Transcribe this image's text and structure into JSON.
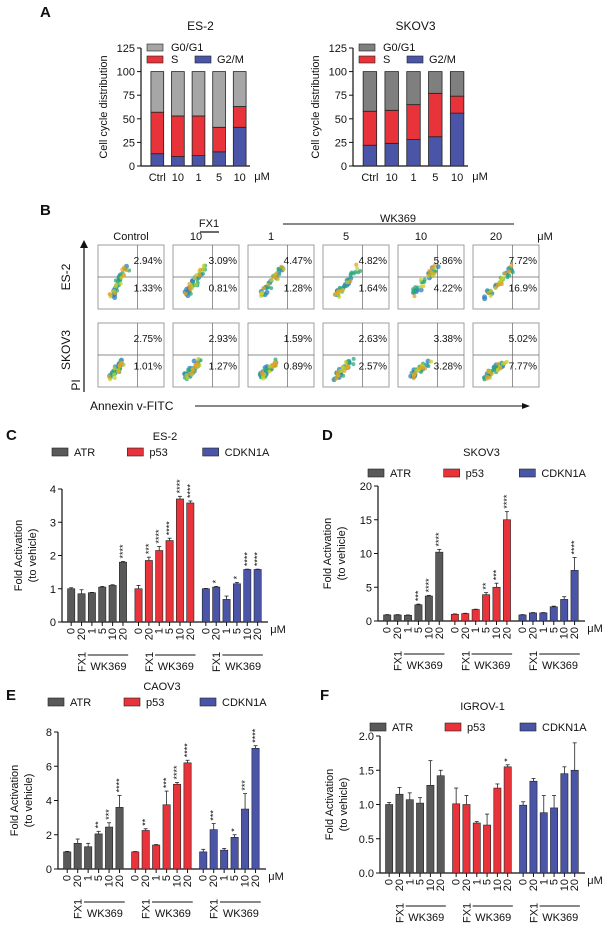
{
  "colors": {
    "ATR": "#595959",
    "p53": "#e8333a",
    "CDKN1A": "#4a55a8",
    "G0G1_es2": "#a6a6a6",
    "G0G1_skov3": "#7f7f7f",
    "S": "#e8333a",
    "G2M": "#4a55a8"
  },
  "panel_letters": [
    "A",
    "B",
    "C",
    "D",
    "E",
    "F"
  ],
  "chart_data": [
    {
      "panel": "A",
      "type": "bar",
      "stacked": true,
      "title": "ES-2",
      "ylabel": "Cell cycle distribution",
      "unit": "μM",
      "categories": [
        "Ctrl",
        "10",
        "1",
        "5",
        "10"
      ],
      "ylim": [
        0,
        125
      ],
      "yticks": [
        "0",
        "25",
        "50",
        "75",
        "100",
        "125"
      ],
      "legend": [
        "G0/G1",
        "S",
        "G2/M"
      ],
      "series": [
        {
          "name": "G2/M",
          "values": [
            13,
            10,
            11,
            15,
            41
          ]
        },
        {
          "name": "S",
          "values": [
            44,
            43,
            42,
            26,
            22
          ]
        },
        {
          "name": "G0/G1",
          "values": [
            43,
            47,
            47,
            59,
            37
          ]
        }
      ]
    },
    {
      "panel": "A",
      "type": "bar",
      "stacked": true,
      "title": "SKOV3",
      "ylabel": "Cell cycle distribution",
      "unit": "μM",
      "categories": [
        "Ctrl",
        "10",
        "1",
        "5",
        "10"
      ],
      "ylim": [
        0,
        125
      ],
      "yticks": [
        "0",
        "25",
        "50",
        "75",
        "100",
        "125"
      ],
      "legend": [
        "G0/G1",
        "S",
        "G2/M"
      ],
      "series": [
        {
          "name": "G2/M",
          "values": [
            22,
            24,
            28,
            31,
            56
          ]
        },
        {
          "name": "S",
          "values": [
            36,
            35,
            37,
            46,
            18
          ]
        },
        {
          "name": "G0/G1",
          "values": [
            42,
            41,
            35,
            23,
            26
          ]
        }
      ]
    },
    {
      "panel": "B",
      "type": "scatter",
      "subtype": "flow-cytometry-grid",
      "column_headers": [
        "Control",
        "10",
        "1",
        "5",
        "10",
        "20"
      ],
      "unit": "μM",
      "group_labels": [
        "FX1",
        "WK369"
      ],
      "row_labels": [
        "ES-2",
        "SKOV3"
      ],
      "ylabel": "PI",
      "xlabel": "Annexin v-FITC",
      "rows": [
        {
          "name": "ES-2",
          "upper_right": [
            "2.94%",
            "3.09%",
            "4.47%",
            "4.82%",
            "5.86%",
            "7.72%"
          ],
          "lower_right": [
            "1.33%",
            "0.81%",
            "1.28%",
            "1.64%",
            "4.22%",
            "16.9%"
          ]
        },
        {
          "name": "SKOV3",
          "upper_right": [
            "2.75%",
            "2.93%",
            "1.59%",
            "2.63%",
            "3.38%",
            "5.02%"
          ],
          "lower_right": [
            "1.01%",
            "1.27%",
            "0.89%",
            "2.57%",
            "3.28%",
            "7.77%"
          ]
        }
      ]
    },
    {
      "panel": "C",
      "type": "bar",
      "title": "ES-2",
      "ylabel": "Fold Activation",
      "ylabel2": "(to vehicle)",
      "unit": "μM",
      "ylim": [
        0,
        4
      ],
      "yticks": [
        "0",
        "1",
        "2",
        "3",
        "4"
      ],
      "categories": [
        "0",
        "20",
        "1",
        "5",
        "10",
        "20"
      ],
      "group_labels": [
        "FX1",
        "WK369"
      ],
      "series": [
        {
          "name": "ATR",
          "values": [
            1.0,
            0.85,
            0.88,
            1.05,
            1.1,
            1.8
          ],
          "errors": [
            0.03,
            0.12,
            0.01,
            0.02,
            0.02,
            0.02
          ],
          "sig": [
            "",
            "",
            "",
            "",
            "",
            "****"
          ]
        },
        {
          "name": "p53",
          "values": [
            1.0,
            1.85,
            2.15,
            2.45,
            3.7,
            3.58
          ],
          "errors": [
            0.1,
            0.1,
            0.12,
            0.07,
            0.08,
            0.06
          ],
          "sig": [
            "",
            "***",
            "****",
            "****",
            "****",
            "****"
          ]
        },
        {
          "name": "CDKN1A",
          "values": [
            1.0,
            1.05,
            0.68,
            1.15,
            1.58,
            1.58
          ],
          "errors": [
            0.01,
            0.02,
            0.1,
            0.04,
            0.01,
            0.01
          ],
          "sig": [
            "",
            "*",
            "",
            "*",
            "****",
            "****"
          ]
        }
      ]
    },
    {
      "panel": "D",
      "type": "bar",
      "title": "SKOV3",
      "ylabel": "Fold Activation",
      "ylabel2": "(to vehicle)",
      "unit": "μM",
      "ylim": [
        0,
        20
      ],
      "yticks": [
        "0",
        "5",
        "10",
        "15",
        "20"
      ],
      "categories": [
        "0",
        "20",
        "1",
        "5",
        "10",
        "20"
      ],
      "group_labels": [
        "FX1",
        "WK369"
      ],
      "series": [
        {
          "name": "ATR",
          "values": [
            0.9,
            0.9,
            0.85,
            2.4,
            3.7,
            10.2
          ],
          "errors": [
            0.05,
            0.05,
            0.05,
            0.1,
            0.1,
            0.4
          ],
          "sig": [
            "",
            "",
            "",
            "***",
            "****",
            "****"
          ]
        },
        {
          "name": "p53",
          "values": [
            1.0,
            1.1,
            1.7,
            3.9,
            5.0,
            15.0
          ],
          "errors": [
            0.05,
            0.05,
            0.05,
            0.3,
            0.6,
            1.2
          ],
          "sig": [
            "",
            "",
            "",
            "**",
            "***",
            "****"
          ]
        },
        {
          "name": "CDKN1A",
          "values": [
            0.9,
            1.2,
            1.2,
            2.1,
            3.2,
            7.5
          ],
          "errors": [
            0.05,
            0.05,
            0.05,
            0.1,
            0.4,
            1.9
          ],
          "sig": [
            "",
            "",
            "",
            "",
            "",
            "****"
          ]
        }
      ]
    },
    {
      "panel": "E",
      "type": "bar",
      "title": "CAOV3",
      "ylabel": "Fold Activation",
      "ylabel2": "(to vehicle)",
      "unit": "μM",
      "ylim": [
        0,
        8
      ],
      "yticks": [
        "0",
        "2",
        "4",
        "6",
        "8"
      ],
      "categories": [
        "0",
        "20",
        "1",
        "5",
        "10",
        "20"
      ],
      "group_labels": [
        "FX1",
        "WK369"
      ],
      "series": [
        {
          "name": "ATR",
          "values": [
            1.0,
            1.5,
            1.3,
            2.05,
            2.45,
            3.6
          ],
          "errors": [
            0.03,
            0.25,
            0.2,
            0.15,
            0.25,
            0.7
          ],
          "sig": [
            "",
            "",
            "",
            "**",
            "***",
            "****"
          ]
        },
        {
          "name": "p53",
          "values": [
            1.0,
            2.25,
            1.4,
            3.75,
            4.95,
            6.2
          ],
          "errors": [
            0.02,
            0.1,
            0.03,
            0.8,
            0.1,
            0.15
          ],
          "sig": [
            "",
            "**",
            "",
            "***",
            "****",
            "****"
          ]
        },
        {
          "name": "CDKN1A",
          "values": [
            1.0,
            2.3,
            1.1,
            1.85,
            3.5,
            7.05
          ],
          "errors": [
            0.15,
            0.35,
            0.1,
            0.15,
            0.9,
            0.15
          ],
          "sig": [
            "",
            "***",
            "",
            "*",
            "***",
            "****"
          ]
        }
      ]
    },
    {
      "panel": "F",
      "type": "bar",
      "title": "IGROV-1",
      "ylabel": "Fold Activation",
      "ylabel2": "(to vehicle)",
      "unit": "μM",
      "ylim": [
        0,
        2
      ],
      "yticks": [
        "0.0",
        "0.5",
        "1.0",
        "1.5",
        "2.0"
      ],
      "categories": [
        "0",
        "20",
        "1",
        "5",
        "10",
        "20"
      ],
      "group_labels": [
        "FX1",
        "WK369"
      ],
      "series": [
        {
          "name": "ATR",
          "values": [
            1.0,
            1.15,
            1.07,
            1.02,
            1.28,
            1.42
          ],
          "errors": [
            0.03,
            0.1,
            0.1,
            0.08,
            0.36,
            0.08
          ],
          "sig": [
            "",
            "",
            "",
            "",
            "",
            ""
          ]
        },
        {
          "name": "p53",
          "values": [
            1.01,
            1.0,
            0.73,
            0.7,
            1.24,
            1.55
          ],
          "errors": [
            0.23,
            0.13,
            0.02,
            0.16,
            0.06,
            0.03
          ],
          "sig": [
            "",
            "",
            "",
            "",
            "",
            "*"
          ]
        },
        {
          "name": "CDKN1A",
          "values": [
            0.99,
            1.34,
            0.88,
            0.95,
            1.45,
            1.5
          ],
          "errors": [
            0.05,
            0.04,
            0.25,
            0.18,
            0.1,
            0.4
          ],
          "sig": [
            "",
            "",
            "",
            "",
            "",
            ""
          ]
        }
      ]
    }
  ]
}
